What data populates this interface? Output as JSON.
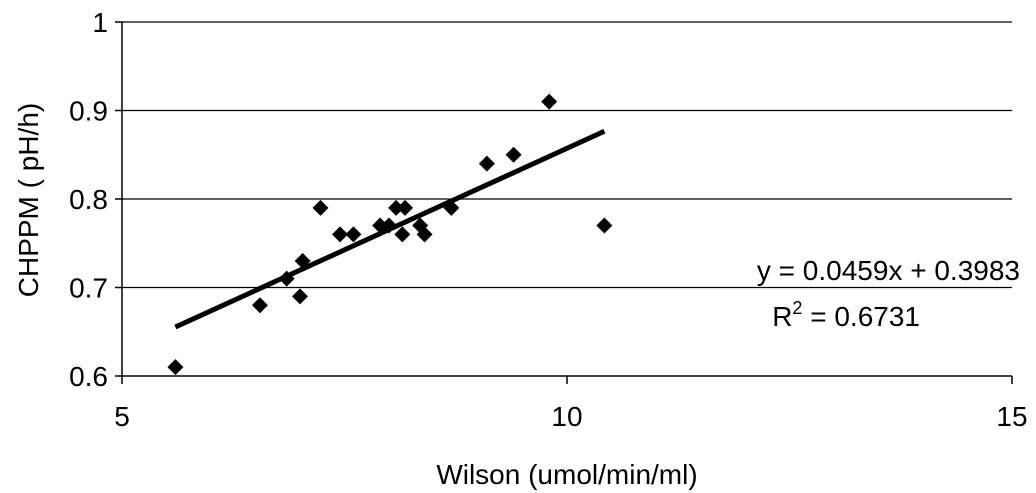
{
  "chart_data": {
    "type": "scatter",
    "title": "",
    "xlabel": "Wilson (umol/min/ml)",
    "ylabel": "CHPPM ( pH/h)",
    "xlim": [
      5,
      15
    ],
    "ylim": [
      0.6,
      1.0
    ],
    "xticks": [
      "5",
      "10",
      "15"
    ],
    "yticks": [
      "0.6",
      "0.7",
      "0.8",
      "0.9",
      "1"
    ],
    "grid": "horizontal",
    "series": [
      {
        "marker": "diamond",
        "color": "#000000",
        "points": [
          {
            "x": 5.6,
            "y": 0.61
          },
          {
            "x": 6.55,
            "y": 0.68
          },
          {
            "x": 6.85,
            "y": 0.71
          },
          {
            "x": 7.0,
            "y": 0.69
          },
          {
            "x": 7.03,
            "y": 0.73
          },
          {
            "x": 7.23,
            "y": 0.79
          },
          {
            "x": 7.45,
            "y": 0.76
          },
          {
            "x": 7.6,
            "y": 0.76
          },
          {
            "x": 7.9,
            "y": 0.77
          },
          {
            "x": 8.0,
            "y": 0.77
          },
          {
            "x": 8.08,
            "y": 0.79
          },
          {
            "x": 8.18,
            "y": 0.79
          },
          {
            "x": 8.15,
            "y": 0.76
          },
          {
            "x": 8.35,
            "y": 0.77
          },
          {
            "x": 8.4,
            "y": 0.76
          },
          {
            "x": 8.7,
            "y": 0.79
          },
          {
            "x": 9.1,
            "y": 0.84
          },
          {
            "x": 9.4,
            "y": 0.85
          },
          {
            "x": 9.8,
            "y": 0.91
          },
          {
            "x": 10.42,
            "y": 0.77
          }
        ]
      }
    ],
    "trendline": {
      "slope": 0.0459,
      "intercept": 0.3983,
      "x_range": [
        5.6,
        10.42
      ],
      "equation": "y = 0.0459x + 0.3983",
      "r2_prefix": "R",
      "r2_sup": "2",
      "r2_value": " = 0.6731"
    }
  }
}
